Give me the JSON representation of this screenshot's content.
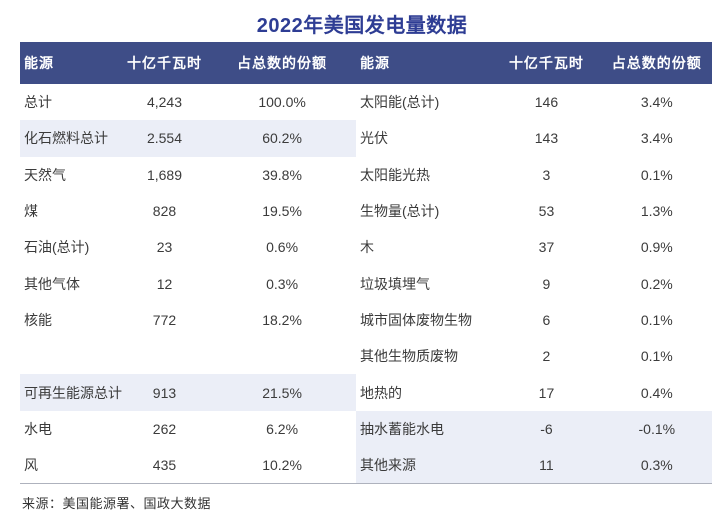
{
  "title": "2022年美国发电量数据",
  "source_note": "来源：美国能源署、国政大数据",
  "colors": {
    "header_bg": "#3e4d87",
    "header_text": "#ffffff",
    "title": "#2e3d94",
    "row_highlight": "#ebeef7",
    "body_text": "#3b3b3b",
    "table_bottom_border": "#aeb2bd"
  },
  "chart_data": {
    "type": "table",
    "title": "2022年美国发电量数据",
    "columns": [
      "能源",
      "十亿千瓦时",
      "占总数的份额",
      "能源",
      "十亿千瓦时",
      "占总数的份额"
    ],
    "source": "来源：美国能源署、国政大数据",
    "rows": [
      {
        "left": {
          "label": "总计",
          "value": "4,243",
          "share": "100.0%",
          "highlight": false
        },
        "right": {
          "label": "太阳能(总计)",
          "value": "146",
          "share": "3.4%",
          "highlight": false
        }
      },
      {
        "left": {
          "label": "化石燃料总计",
          "value": "2.554",
          "share": "60.2%",
          "highlight": true
        },
        "right": {
          "label": "光伏",
          "value": "143",
          "share": "3.4%",
          "highlight": false
        }
      },
      {
        "left": {
          "label": "天然气",
          "value": "1,689",
          "share": "39.8%",
          "highlight": false
        },
        "right": {
          "label": "太阳能光热",
          "value": "3",
          "share": "0.1%",
          "highlight": false
        }
      },
      {
        "left": {
          "label": "煤",
          "value": "828",
          "share": "19.5%",
          "highlight": false
        },
        "right": {
          "label": "生物量(总计)",
          "value": "53",
          "share": "1.3%",
          "highlight": false
        }
      },
      {
        "left": {
          "label": "石油(总计)",
          "value": "23",
          "share": "0.6%",
          "highlight": false
        },
        "right": {
          "label": "木",
          "value": "37",
          "share": "0.9%",
          "highlight": false
        }
      },
      {
        "left": {
          "label": "其他气体",
          "value": "12",
          "share": "0.3%",
          "highlight": false
        },
        "right": {
          "label": "垃圾填埋气",
          "value": "9",
          "share": "0.2%",
          "highlight": false
        }
      },
      {
        "left": {
          "label": "核能",
          "value": "772",
          "share": "18.2%",
          "highlight": false
        },
        "right": {
          "label": "城市固体废物生物",
          "value": "6",
          "share": "0.1%",
          "highlight": false
        }
      },
      {
        "left": {
          "label": "",
          "value": "",
          "share": "",
          "highlight": false
        },
        "right": {
          "label": "其他生物质废物",
          "value": "2",
          "share": "0.1%",
          "highlight": false
        }
      },
      {
        "left": {
          "label": "可再生能源总计",
          "value": "913",
          "share": "21.5%",
          "highlight": true
        },
        "right": {
          "label": "地热的",
          "value": "17",
          "share": "0.4%",
          "highlight": false
        }
      },
      {
        "left": {
          "label": "水电",
          "value": "262",
          "share": "6.2%",
          "highlight": false
        },
        "right": {
          "label": "抽水蓄能水电",
          "value": "-6",
          "share": "-0.1%",
          "highlight": true
        }
      },
      {
        "left": {
          "label": "风",
          "value": "435",
          "share": "10.2%",
          "highlight": false
        },
        "right": {
          "label": "其他来源",
          "value": "11",
          "share": "0.3%",
          "highlight": true
        }
      }
    ]
  }
}
